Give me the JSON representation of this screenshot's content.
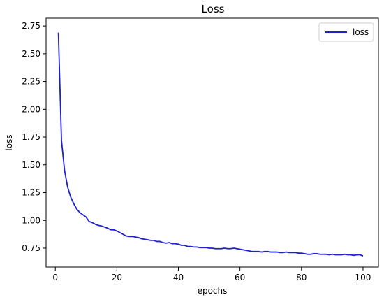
{
  "chart_data": {
    "type": "line",
    "title": "Loss",
    "xlabel": "epochs",
    "ylabel": "loss",
    "xlim": [
      -3,
      105
    ],
    "ylim": [
      0.58,
      2.82
    ],
    "xticks": [
      0,
      20,
      40,
      60,
      80,
      100
    ],
    "xtick_labels": [
      "0",
      "20",
      "40",
      "60",
      "80",
      "100"
    ],
    "yticks": [
      0.75,
      1.0,
      1.25,
      1.5,
      1.75,
      2.0,
      2.25,
      2.5,
      2.75
    ],
    "ytick_labels": [
      "0.75",
      "1.00",
      "1.25",
      "1.50",
      "1.75",
      "2.00",
      "2.25",
      "2.50",
      "2.75"
    ],
    "grid": false,
    "legend": "top-right",
    "series": [
      {
        "name": "loss",
        "color": "#1f1fd0",
        "x": [
          1,
          2,
          3,
          4,
          5,
          6,
          7,
          8,
          9,
          10,
          11,
          12,
          13,
          14,
          15,
          16,
          17,
          18,
          19,
          20,
          21,
          22,
          23,
          24,
          25,
          26,
          27,
          28,
          29,
          30,
          31,
          32,
          33,
          34,
          35,
          36,
          37,
          38,
          39,
          40,
          41,
          42,
          43,
          44,
          45,
          46,
          47,
          48,
          49,
          50,
          51,
          52,
          53,
          54,
          55,
          56,
          57,
          58,
          59,
          60,
          61,
          62,
          63,
          64,
          65,
          66,
          67,
          68,
          69,
          70,
          71,
          72,
          73,
          74,
          75,
          76,
          77,
          78,
          79,
          80,
          81,
          82,
          83,
          84,
          85,
          86,
          87,
          88,
          89,
          90,
          91,
          92,
          93,
          94,
          95,
          96,
          97,
          98,
          99,
          100
        ],
        "values": [
          2.69,
          1.72,
          1.45,
          1.3,
          1.21,
          1.15,
          1.1,
          1.07,
          1.05,
          1.03,
          0.99,
          0.98,
          0.965,
          0.955,
          0.95,
          0.94,
          0.93,
          0.915,
          0.915,
          0.905,
          0.89,
          0.875,
          0.86,
          0.855,
          0.855,
          0.85,
          0.845,
          0.835,
          0.83,
          0.825,
          0.82,
          0.82,
          0.81,
          0.81,
          0.8,
          0.795,
          0.8,
          0.79,
          0.79,
          0.785,
          0.775,
          0.775,
          0.765,
          0.765,
          0.76,
          0.76,
          0.755,
          0.755,
          0.755,
          0.75,
          0.75,
          0.745,
          0.745,
          0.745,
          0.75,
          0.745,
          0.745,
          0.75,
          0.745,
          0.74,
          0.735,
          0.73,
          0.725,
          0.72,
          0.72,
          0.72,
          0.715,
          0.72,
          0.72,
          0.715,
          0.715,
          0.715,
          0.71,
          0.71,
          0.715,
          0.71,
          0.71,
          0.71,
          0.705,
          0.705,
          0.7,
          0.695,
          0.695,
          0.7,
          0.7,
          0.695,
          0.695,
          0.695,
          0.69,
          0.695,
          0.69,
          0.69,
          0.69,
          0.695,
          0.69,
          0.69,
          0.685,
          0.69,
          0.69,
          0.68
        ]
      }
    ]
  }
}
